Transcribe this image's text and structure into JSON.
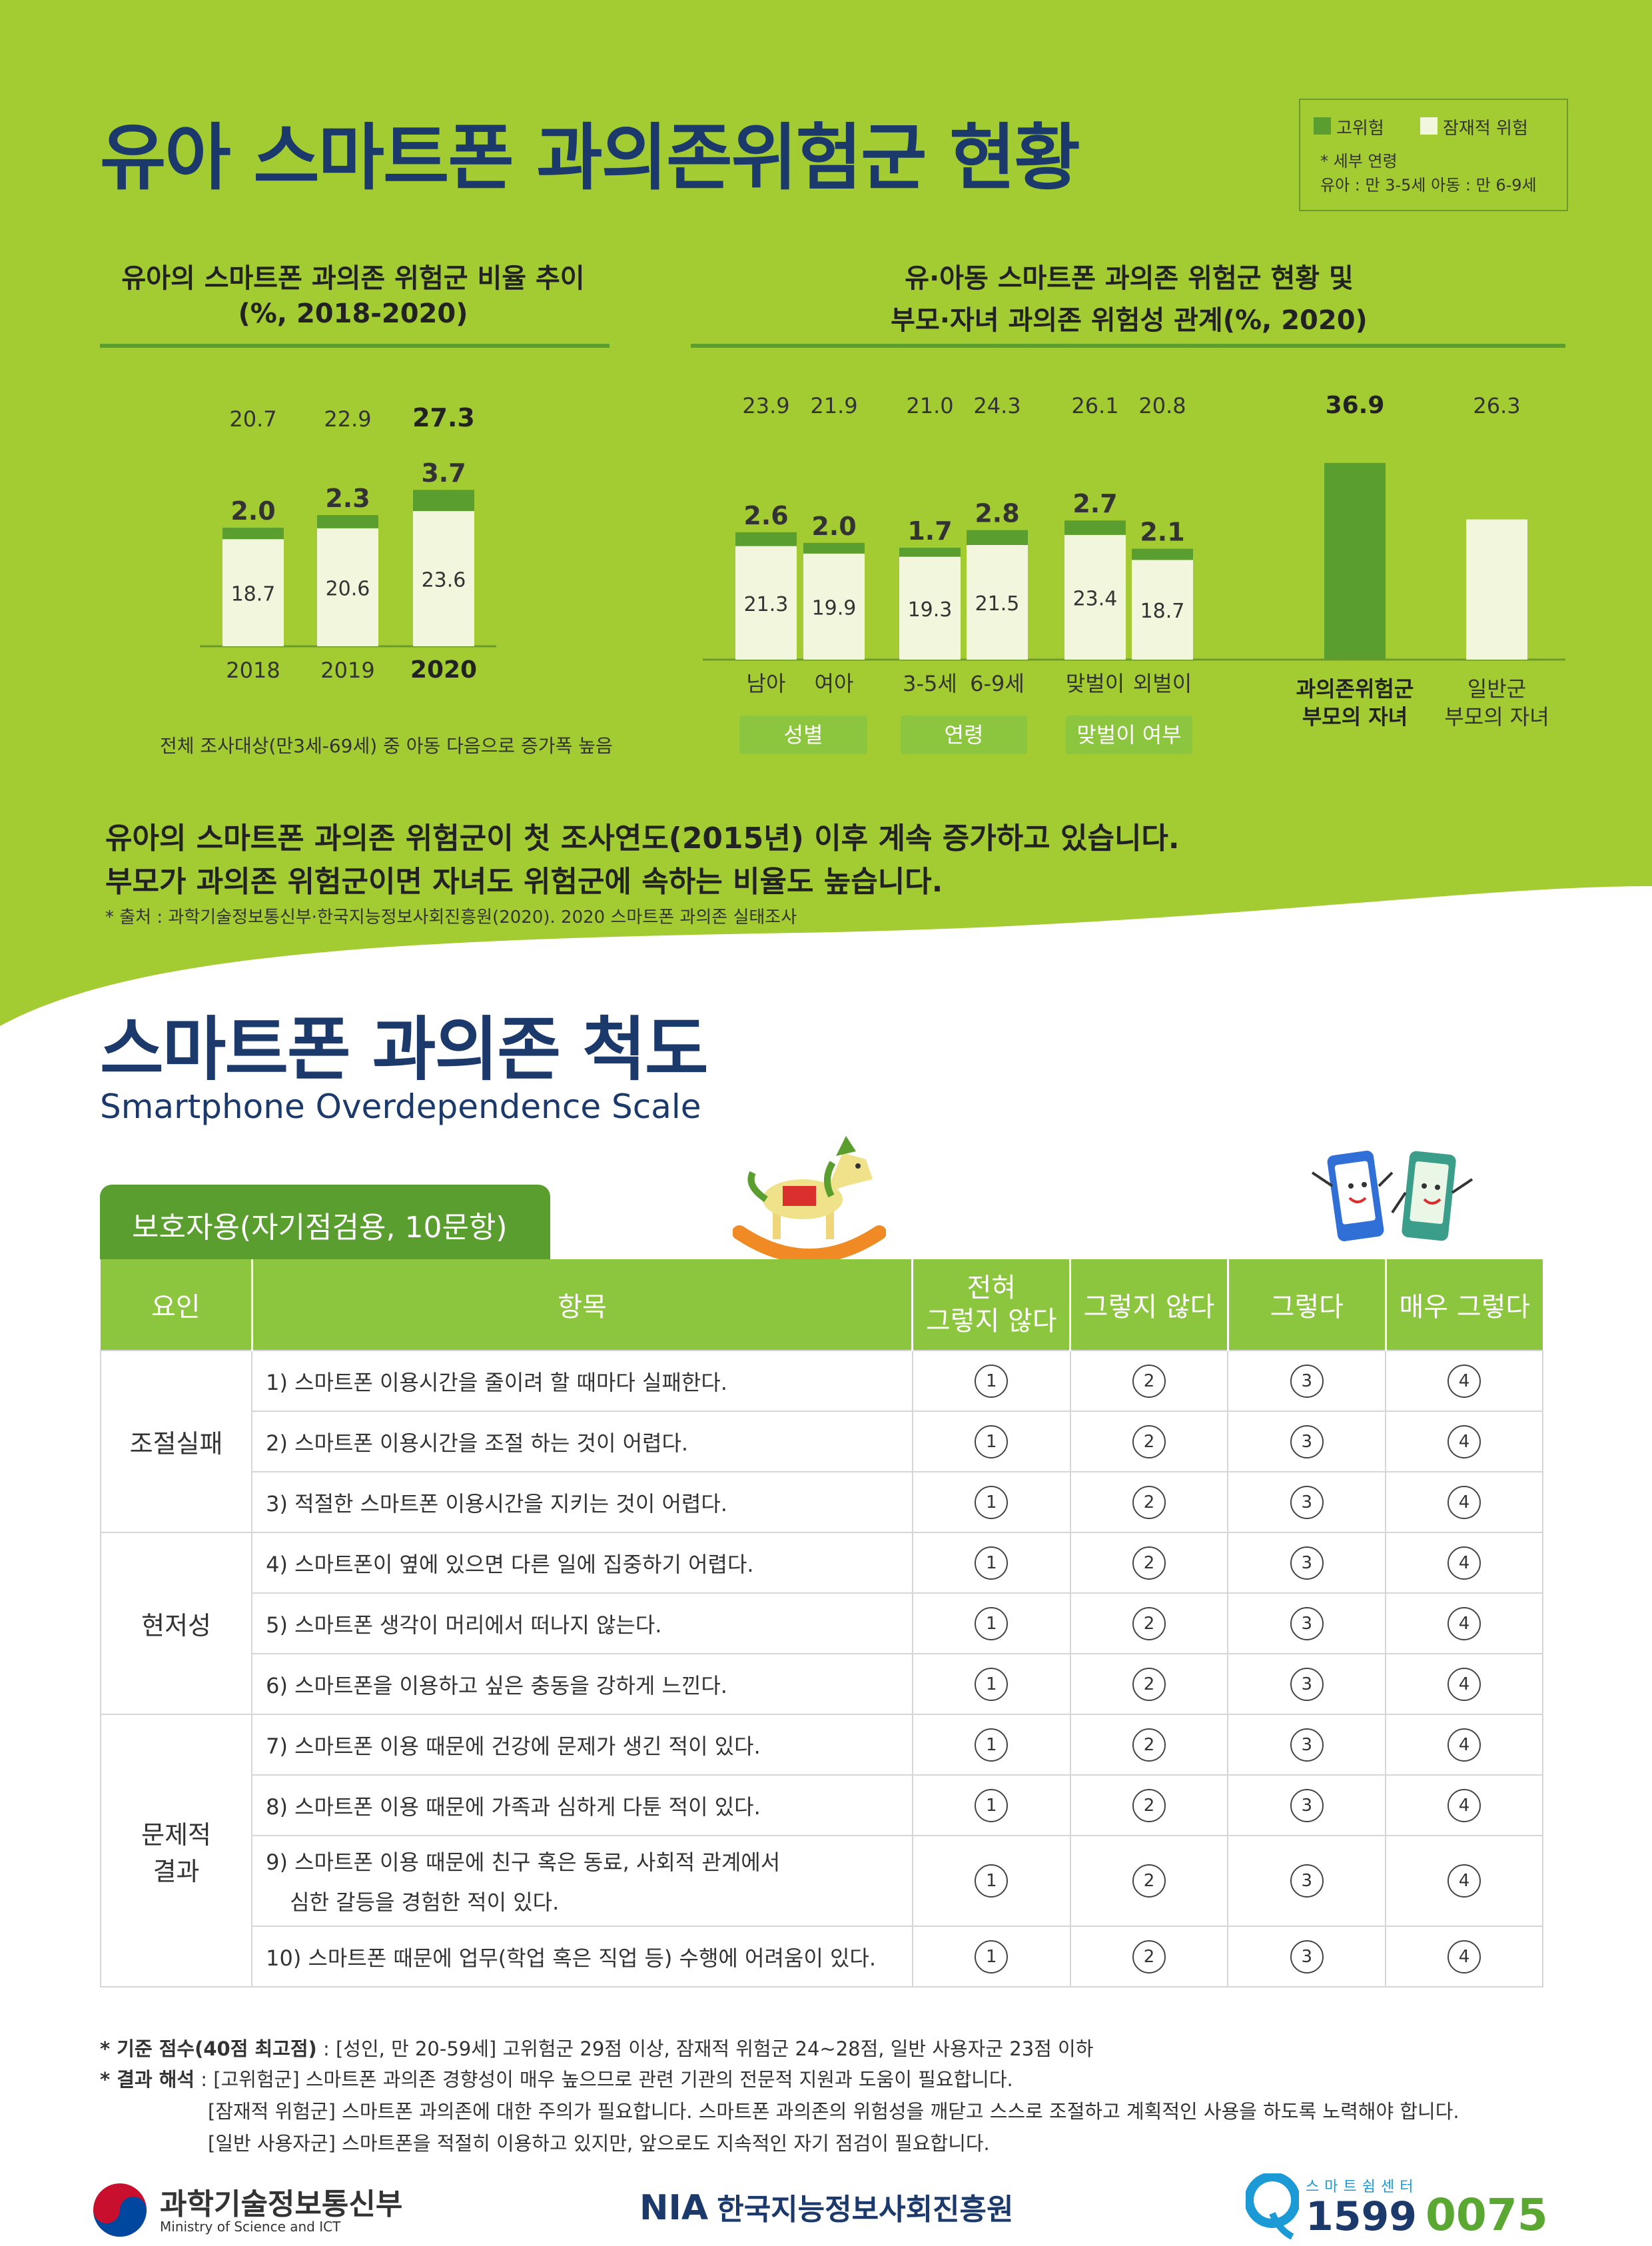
{
  "top": {
    "title": "유아 스마트폰 과의존위험군 현황",
    "legend": {
      "high": "고위험",
      "potential": "잠재적 위험",
      "note_title": "* 세부 연령",
      "note_body": "유아 : 만 3-5세  아동 : 만 6-9세"
    },
    "left_title_1": "유아의 스마트폰 과의존 위험군 비율 추이",
    "left_title_2": "(%, 2018-2020)",
    "left_note": "전체 조사대상(만3세-69세) 중 아동 다음으로 증가폭 높음",
    "right_title_1": "유·아동 스마트폰 과의존 위험군 현황 및",
    "right_title_2": "부모·자녀 과의존 위험성 관계(%, 2020)",
    "group_tags": [
      "성별",
      "연령",
      "맞벌이 여부"
    ],
    "summary_1": "유아의 스마트폰 과의존 위험군이 첫 조사연도(2015년) 이후 계속 증가하고 있습니다.",
    "summary_2": "부모가 과의존 위험군이면 자녀도 위험군에 속하는 비율도 높습니다.",
    "source": "* 출처 : 과학기술정보통신부·한국지능정보사회진흥원(2020). 2020 스마트폰 과의존 실태조사"
  },
  "chart_data": [
    {
      "type": "bar",
      "stacked": true,
      "categories": [
        "2018",
        "2019",
        "2020"
      ],
      "series": [
        {
          "name": "잠재적 위험",
          "values": [
            18.7,
            20.6,
            23.6
          ]
        },
        {
          "name": "고위험",
          "values": [
            2.0,
            2.3,
            3.7
          ]
        }
      ],
      "totals": [
        20.7,
        22.9,
        27.3
      ],
      "total_labels": [
        "20.7",
        "22.9",
        "27.3"
      ],
      "high_labels": [
        "2.0",
        "2.3",
        "3.7"
      ],
      "potential_labels": [
        "18.7",
        "20.6",
        "23.6"
      ],
      "ylim": [
        0,
        30
      ],
      "colors": {
        "high": "#5a9e2f",
        "potential": "#f1f6dd"
      }
    },
    {
      "type": "bar",
      "stacked": true,
      "categories": [
        "남아",
        "여아",
        "3-5세",
        "6-9세",
        "맞벌이",
        "외벌이"
      ],
      "series": [
        {
          "name": "잠재적 위험",
          "values": [
            21.3,
            19.9,
            19.3,
            21.5,
            23.4,
            18.7
          ]
        },
        {
          "name": "고위험",
          "values": [
            2.6,
            2.0,
            1.7,
            2.8,
            2.7,
            2.1
          ]
        }
      ],
      "totals": [
        23.9,
        21.9,
        21.0,
        24.3,
        26.1,
        20.8
      ],
      "total_labels": [
        "23.9",
        "21.9",
        "21.0",
        "24.3",
        "26.1",
        "20.8"
      ],
      "high_labels": [
        "2.6",
        "2.0",
        "1.7",
        "2.8",
        "2.7",
        "2.1"
      ],
      "potential_labels": [
        "21.3",
        "19.9",
        "19.3",
        "21.5",
        "23.4",
        "18.7"
      ],
      "groups": [
        "성별",
        "연령",
        "맞벌이 여부"
      ],
      "ylim": [
        0,
        30
      ]
    },
    {
      "type": "bar",
      "categories": [
        "과의존위험군 부모의 자녀",
        "일반군 부모의 자녀"
      ],
      "category_lines": [
        [
          "과의존위험군",
          "부모의 자녀"
        ],
        [
          "일반군",
          "부모의 자녀"
        ]
      ],
      "values": [
        36.9,
        26.3
      ],
      "value_labels": [
        "36.9",
        "26.3"
      ],
      "ylim": [
        0,
        45
      ],
      "colors": [
        "#5a9e2f",
        "#f1f6dd"
      ]
    }
  ],
  "scale": {
    "title": "스마트폰 과의존 척도",
    "subtitle": "Smartphone Overdependence Scale",
    "tab_label": "보호자용(자기점검용, 10문항)",
    "headers": {
      "factor": "요인",
      "item": "항목",
      "opt1_line1": "전혀",
      "opt1_line2": "그렇지 않다",
      "opt2": "그렇지 않다",
      "opt3": "그렇다",
      "opt4": "매우 그렇다"
    },
    "factors": [
      "조절실패",
      "현저성",
      "문제적",
      "결과"
    ],
    "items": [
      "1) 스마트폰 이용시간을 줄이려 할 때마다 실패한다.",
      "2) 스마트폰 이용시간을 조절 하는 것이 어렵다.",
      "3) 적절한 스마트폰 이용시간을 지키는 것이 어렵다.",
      "4) 스마트폰이 옆에 있으면 다른 일에 집중하기 어렵다.",
      "5) 스마트폰 생각이 머리에서 떠나지 않는다.",
      "6) 스마트폰을 이용하고 싶은 충동을 강하게 느낀다.",
      "7) 스마트폰 이용 때문에 건강에 문제가 생긴 적이 있다.",
      "8) 스마트폰 이용 때문에 가족과 심하게 다툰 적이 있다.",
      "9) 스마트폰  이용 때문에 친구 혹은 동료, 사회적 관계에서",
      "10) 스마트폰 때문에 업무(학업 혹은 직업 등) 수행에 어려움이 있다."
    ],
    "item9_line2": "심한 갈등을 경험한 적이 있다.",
    "options": [
      "1",
      "2",
      "3",
      "4"
    ]
  },
  "notes": {
    "criteria_label": "* 기준 점수(40점 최고점)",
    "criteria_text": " : [성인, 만 20-59세] 고위험군 29점 이상, 잠재적 위험군 24~28점, 일반 사용자군 23점 이하",
    "result_label": "* 결과 해석",
    "result_1": " : [고위험군] 스마트폰 과의존 경향성이 매우 높으므로 관련 기관의 전문적 지원과 도움이 필요합니다.",
    "result_2": "[잠재적 위험군] 스마트폰 과의존에 대한 주의가 필요합니다. 스마트폰 과의존의 위험성을 깨닫고 스스로 조절하고 계획적인 사용을 하도록 노력해야 합니다.",
    "result_3": "[일반 사용자군] 스마트폰을 적절히 이용하고 있지만, 앞으로도 지속적인 자기 점검이 필요합니다."
  },
  "footer": {
    "msit_name": "과학기술정보통신부",
    "msit_en": "Ministry of Science and ICT",
    "nia_abbr": "NIA",
    "nia_name": "한국지능정보사회진흥원",
    "center_label": "스마트쉼센터",
    "phone": "1599",
    "phone_suffix": "0075"
  },
  "colors": {
    "green_bg": "#a3cc32",
    "navy": "#1b3a6b",
    "dark_green": "#5a9e2f",
    "light": "#f1f6dd",
    "table_header": "#8cc63f"
  }
}
